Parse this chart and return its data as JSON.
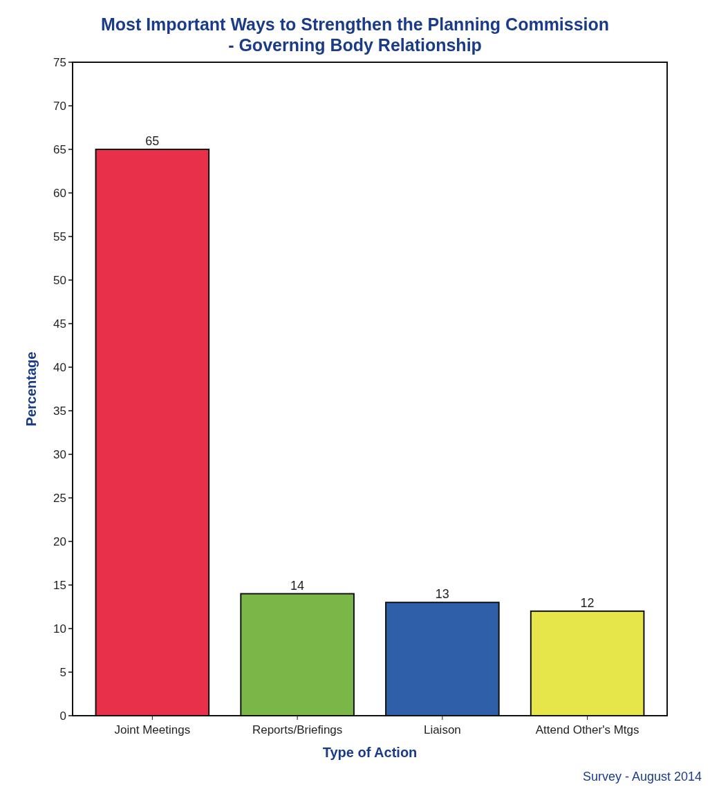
{
  "chart_data": {
    "type": "bar",
    "title": "Most Important Ways to Strengthen the Planning Commission - Governing Body Relationship",
    "xlabel": "Type of Action",
    "ylabel": "Percentage",
    "categories": [
      "Joint Meetings",
      "Reports/Briefings",
      "Liaison",
      "Attend Other's Mtgs"
    ],
    "values": [
      65,
      14,
      13,
      12
    ],
    "colors": [
      "#e8304a",
      "#7ab648",
      "#2f5fa8",
      "#e6e64a"
    ],
    "ylim": [
      0,
      75
    ],
    "yticks": [
      0,
      5,
      10,
      15,
      20,
      25,
      30,
      35,
      40,
      45,
      50,
      55,
      60,
      65,
      70,
      75
    ],
    "grid": false,
    "data_labels": true,
    "annotations": [
      "Survey - August 2014"
    ]
  }
}
